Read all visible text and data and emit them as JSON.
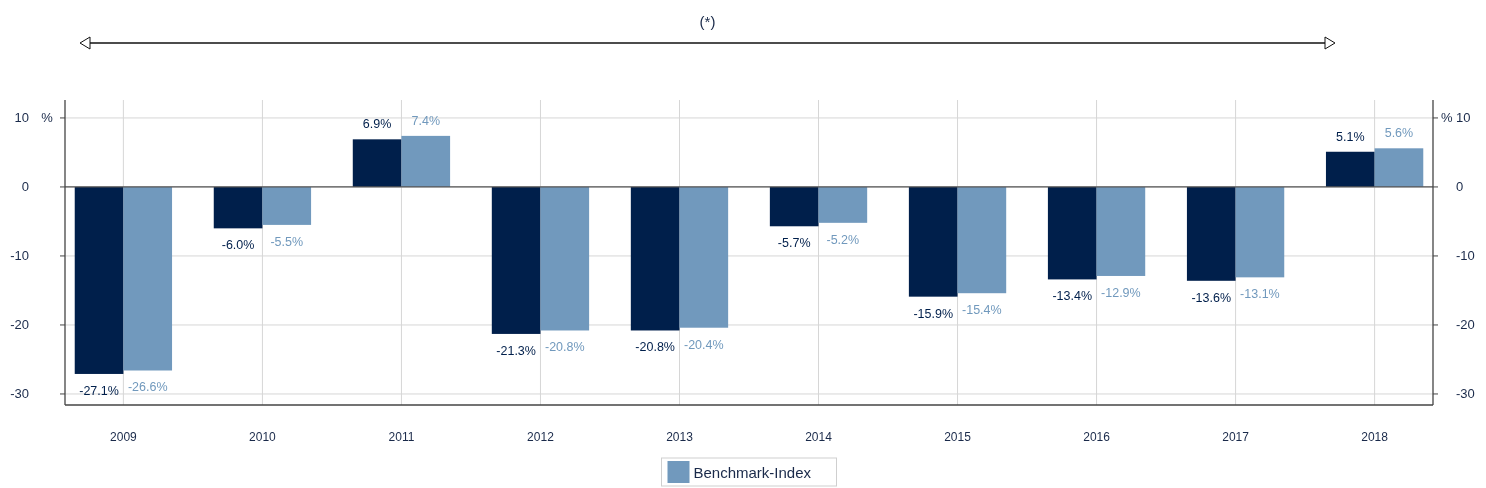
{
  "chart_data": {
    "type": "bar",
    "categories": [
      "2009",
      "2010",
      "2011",
      "2012",
      "2013",
      "2014",
      "2015",
      "2016",
      "2017",
      "2018"
    ],
    "series": [
      {
        "color": "#001f4b",
        "values": [
          -27.1,
          -6.0,
          6.9,
          -21.3,
          -20.8,
          -5.7,
          -15.9,
          -13.4,
          -13.6,
          5.1
        ],
        "value_labels": [
          "-27.1%",
          "-6.0%",
          "6.9%",
          "-21.3%",
          "-20.8%",
          "-5.7%",
          "-15.9%",
          "-13.4%",
          "-13.6%",
          "5.1%"
        ]
      },
      {
        "name": "Benchmark-Index",
        "color": "#7199bd",
        "values": [
          -26.6,
          -5.5,
          7.4,
          -20.8,
          -20.4,
          -5.2,
          -15.4,
          -12.9,
          -13.1,
          5.6
        ],
        "value_labels": [
          "-26.6%",
          "-5.5%",
          "7.4%",
          "-20.8%",
          "-20.4%",
          "-5.2%",
          "-15.4%",
          "-12.9%",
          "-13.1%",
          "5.6%"
        ]
      }
    ],
    "ylim": [
      -31.6,
      12.6
    ],
    "yticks": [
      -30,
      -20,
      -10,
      0,
      10
    ],
    "y2lim": [
      -31.6,
      12.6
    ],
    "y2ticks": [
      -30,
      -20,
      -10,
      0,
      10
    ],
    "ylabel": "%",
    "y2label": "%",
    "grid": true,
    "legend": "bottom",
    "annotations": [
      "(*)"
    ]
  }
}
